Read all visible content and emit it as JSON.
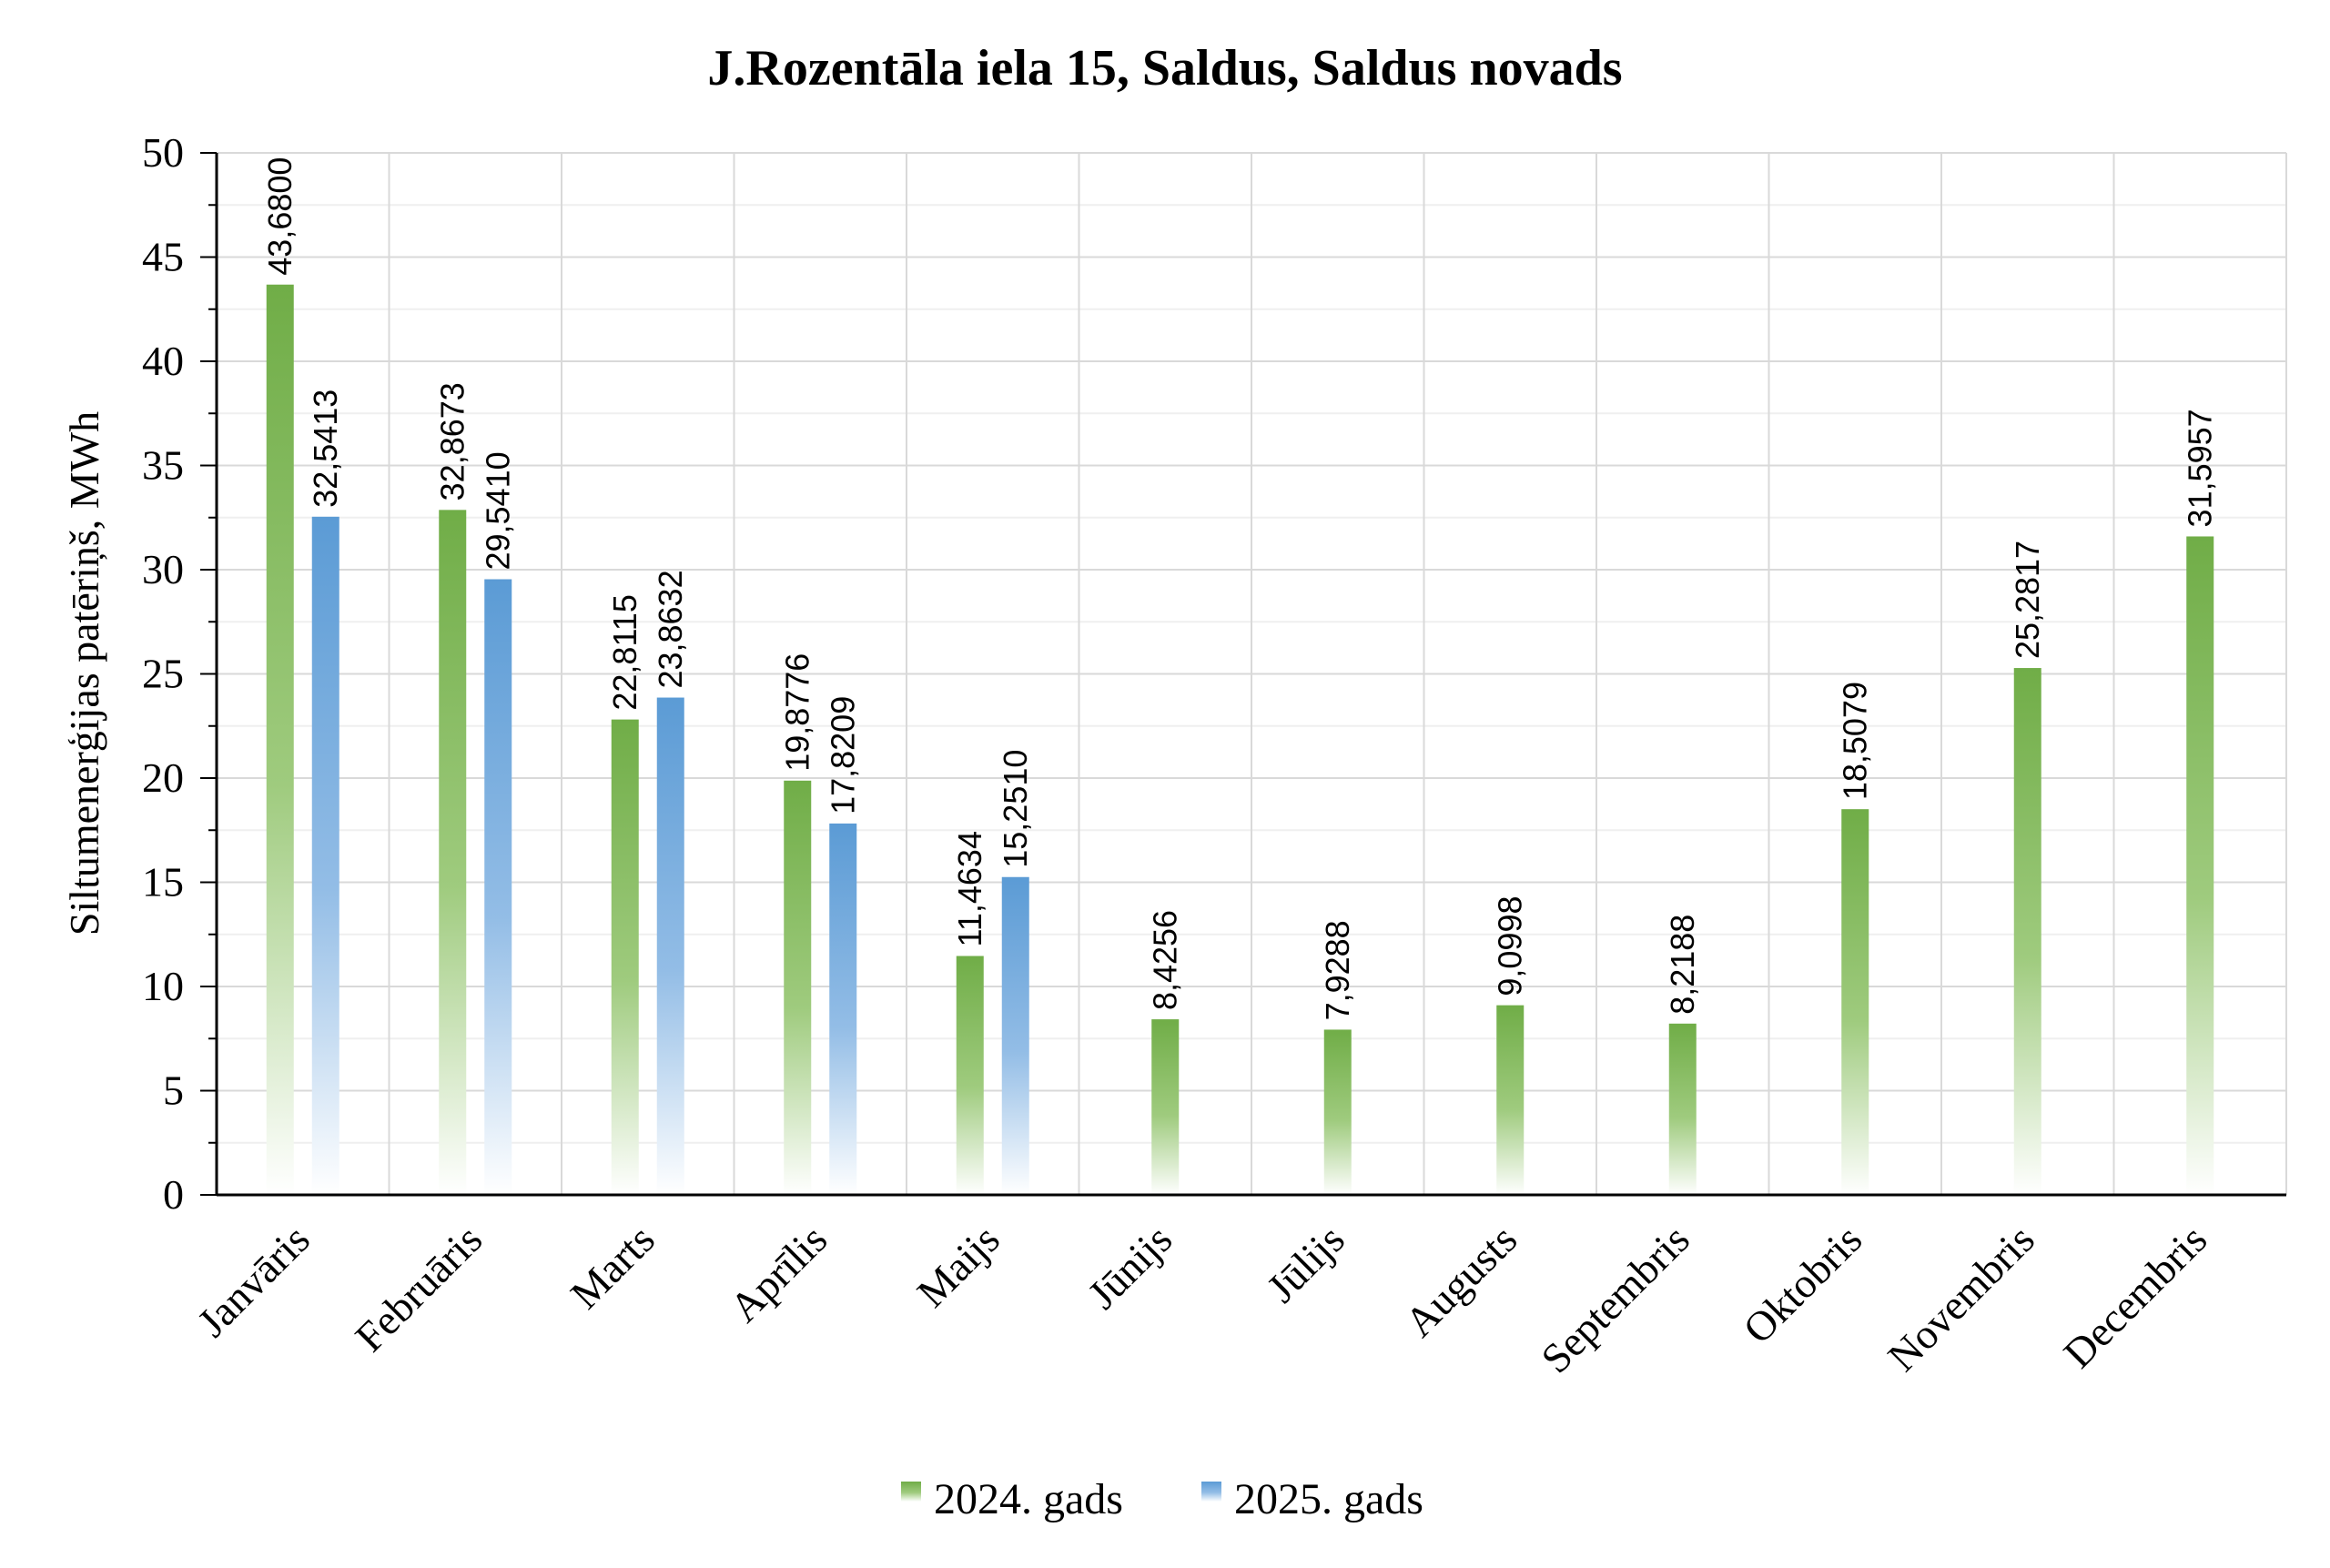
{
  "chart_data": {
    "type": "bar",
    "title": "J.Rozentāla iela 15, Saldus, Saldus novads",
    "xlabel": "",
    "ylabel": "Siltumenerģijas patēriņš, MWh",
    "ylim": [
      0,
      50
    ],
    "yticks": [
      "0",
      "5",
      "10",
      "15",
      "20",
      "25",
      "30",
      "35",
      "40",
      "45",
      "50"
    ],
    "grid": true,
    "legend_position": "bottom",
    "categories": [
      "Janvāris",
      "Februāris",
      "Marts",
      "Aprīlis",
      "Maijs",
      "Jūnijs",
      "Jūlijs",
      "Augusts",
      "Septembris",
      "Oktobris",
      "Novembris",
      "Decembris"
    ],
    "series": [
      {
        "name": "2024. gads",
        "color": "#70AD47",
        "values": [
          43.68,
          32.8673,
          22.8115,
          19.8776,
          11.4634,
          8.4256,
          7.9288,
          9.0998,
          8.2188,
          18.5079,
          25.2817,
          31.5957
        ],
        "labels": [
          "43,6800",
          "32,8673",
          "22,8115",
          "19,8776",
          "11,4634",
          "8,4256",
          "7,9288",
          "9,0998",
          "8,2188",
          "18,5079",
          "25,2817",
          "31,5957"
        ]
      },
      {
        "name": "2025. gads",
        "color": "#5B9BD5",
        "values": [
          32.5413,
          29.541,
          23.8632,
          17.8209,
          15.251,
          null,
          null,
          null,
          null,
          null,
          null,
          null
        ],
        "labels": [
          "32,5413",
          "29,5410",
          "23,8632",
          "17,8209",
          "15,2510",
          null,
          null,
          null,
          null,
          null,
          null,
          null
        ]
      }
    ]
  }
}
